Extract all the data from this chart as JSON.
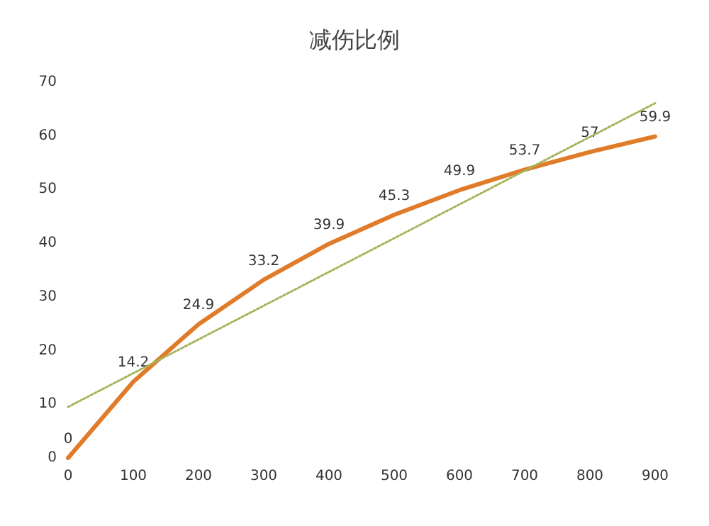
{
  "chart_data": {
    "type": "line",
    "title": "减伤比例",
    "x": [
      0,
      100,
      200,
      300,
      400,
      500,
      600,
      700,
      800,
      900
    ],
    "xlim": [
      0,
      900
    ],
    "xticks": [
      0,
      100,
      200,
      300,
      400,
      500,
      600,
      700,
      800,
      900
    ],
    "ylim": [
      0,
      70
    ],
    "yticks": [
      0,
      10,
      20,
      30,
      40,
      50,
      60,
      70
    ],
    "series": [
      {
        "color": "#e07b2a",
        "values": [
          0,
          14.2,
          24.9,
          33.2,
          39.9,
          45.3,
          49.9,
          53.7,
          57,
          59.9
        ],
        "value_labels": [
          "0",
          "14.2",
          "24.9",
          "33.2",
          "39.9",
          "45.3",
          "49.9",
          "53.7",
          "57",
          "59.9"
        ]
      },
      {
        "type": "line",
        "color": "#a8b45a",
        "line_style": "dotted",
        "x": [
          0,
          900
        ],
        "values": [
          9.5,
          66.1
        ]
      }
    ],
    "grid": false,
    "marker": "none"
  }
}
